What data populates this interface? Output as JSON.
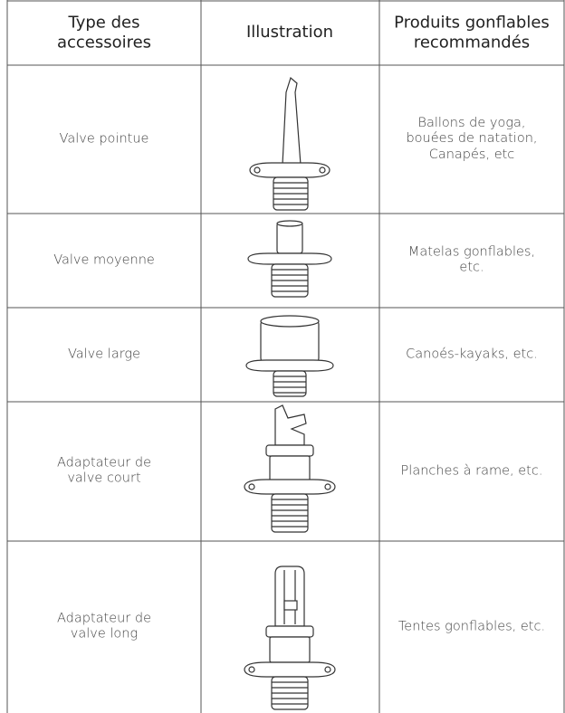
{
  "table": {
    "header": [
      "Type des accessoires",
      "Illustration",
      "Produits gonflables recommandés"
    ],
    "rows": [
      [
        "Valve pointue",
        "Ballons de yoga, bouées de natation, Canapés, etc"
      ],
      [
        "Valve moyenne",
        "Matelas gonflables, etc."
      ],
      [
        "Valve large",
        "Canoés-kayaks, etc."
      ],
      [
        "Adaptateur de valve court",
        "Planches à rame, etc."
      ],
      [
        "Adaptateur de valve long",
        "Tentes gonflables, etc."
      ]
    ]
  }
}
